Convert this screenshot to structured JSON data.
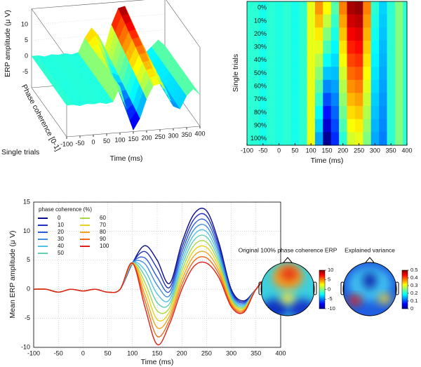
{
  "chart_data": [
    {
      "type": "surface3d",
      "zlabel": "ERP amplitude (μ V)",
      "ylabel": "Phase coherence [0-1]",
      "ylabel2": "Single trials",
      "xlabel": "Time (ms)",
      "x": [
        -100,
        -75,
        -50,
        -25,
        0,
        25,
        50,
        75,
        100,
        125,
        150,
        175,
        200,
        225,
        250,
        275,
        300,
        325,
        350,
        375,
        400
      ],
      "z": [
        [
          0,
          0,
          -0.5,
          0,
          -0.3,
          0,
          -0.5,
          0,
          4.5,
          7.5,
          5,
          1,
          8,
          13,
          13.5,
          8,
          0,
          -2,
          0,
          2,
          0
        ],
        [
          0,
          0,
          -0.5,
          0,
          -0.3,
          0,
          -0.5,
          0,
          4.5,
          6.5,
          3.6,
          0.3,
          7.2,
          12.1,
          12.6,
          7.4,
          -0.3,
          -2.2,
          0,
          2,
          0
        ],
        [
          0,
          0,
          -0.5,
          0,
          -0.3,
          0,
          -0.5,
          0,
          4.5,
          5.4,
          2.1,
          -0.4,
          6.4,
          11.2,
          11.7,
          6.8,
          -0.6,
          -2.4,
          0,
          2,
          0
        ],
        [
          0,
          0,
          -0.5,
          0,
          -0.3,
          0,
          -0.5,
          0,
          4.5,
          4.4,
          0.7,
          -1.1,
          5.6,
          10.3,
          10.8,
          6.2,
          -0.9,
          -2.6,
          0,
          2,
          0
        ],
        [
          0,
          0,
          -0.5,
          0,
          -0.3,
          0,
          -0.5,
          0,
          4.5,
          3.3,
          -0.8,
          -1.8,
          4.8,
          9.4,
          9.9,
          5.6,
          -1.2,
          -2.8,
          0,
          2,
          0
        ],
        [
          0,
          0,
          -0.5,
          0,
          -0.3,
          0,
          -0.5,
          0,
          4.5,
          2.3,
          -2.3,
          -2.5,
          4,
          8.5,
          9,
          5,
          -1.5,
          -3,
          0,
          2,
          0
        ],
        [
          0,
          0,
          -0.5,
          0,
          -0.3,
          0,
          -0.5,
          0,
          4.5,
          1.2,
          -3.7,
          -3.2,
          3.2,
          7.6,
          8.1,
          4.4,
          -1.8,
          -3.2,
          0,
          2,
          0
        ],
        [
          0,
          0,
          -0.5,
          0,
          -0.3,
          0,
          -0.5,
          0,
          4.5,
          0.2,
          -5.2,
          -3.9,
          2.4,
          6.7,
          7.2,
          3.8,
          -2.1,
          -3.4,
          0,
          2,
          0
        ],
        [
          0,
          0,
          -0.5,
          0,
          -0.3,
          0,
          -0.5,
          0,
          4.5,
          -0.9,
          -6.6,
          -4.6,
          1.6,
          5.8,
          6.3,
          3.2,
          -2.4,
          -3.6,
          0,
          2,
          0
        ],
        [
          0,
          0,
          -0.5,
          0,
          -0.3,
          0,
          -0.5,
          0,
          4.5,
          -1.9,
          -8.1,
          -5.3,
          0.8,
          4.9,
          5.4,
          2.6,
          -2.7,
          -3.8,
          0,
          2,
          0
        ],
        [
          0,
          0,
          -0.5,
          0,
          -0.3,
          0,
          -0.5,
          0,
          4.5,
          -3,
          -9.5,
          -6,
          0,
          4,
          4.5,
          2,
          -3,
          -4,
          0,
          2,
          0
        ]
      ],
      "xlim": [
        -100,
        400
      ],
      "xticks": [
        -100,
        -50,
        0,
        50,
        100,
        150,
        200,
        250,
        300,
        350,
        400
      ],
      "zlim": [
        -10,
        15
      ],
      "zticks": [
        -5,
        0,
        5,
        10
      ],
      "clim": [
        -10,
        14
      ]
    },
    {
      "type": "heatmap",
      "xlabel": "Time (ms)",
      "ylabel": "Single trials",
      "categories": [
        "0%",
        "10%",
        "20%",
        "30%",
        "40%",
        "50%",
        "60%",
        "70%",
        "80%",
        "90%",
        "100%"
      ],
      "x": [
        -100,
        -75,
        -50,
        -25,
        0,
        25,
        50,
        75,
        100,
        125,
        150,
        175,
        200,
        225,
        250,
        275,
        300,
        325,
        350,
        375,
        400
      ],
      "values": [
        [
          0,
          0,
          -0.5,
          0,
          -0.3,
          0,
          -0.5,
          0,
          4.5,
          7.5,
          5,
          1,
          8,
          13,
          13.5,
          8,
          0,
          -2,
          0,
          2,
          0
        ],
        [
          0,
          0,
          -0.5,
          0,
          -0.3,
          0,
          -0.5,
          0,
          4.5,
          6.5,
          3.6,
          0.3,
          7.2,
          12.1,
          12.6,
          7.4,
          -0.3,
          -2.2,
          0,
          2,
          0
        ],
        [
          0,
          0,
          -0.5,
          0,
          -0.3,
          0,
          -0.5,
          0,
          4.5,
          5.4,
          2.1,
          -0.4,
          6.4,
          11.2,
          11.7,
          6.8,
          -0.6,
          -2.4,
          0,
          2,
          0
        ],
        [
          0,
          0,
          -0.5,
          0,
          -0.3,
          0,
          -0.5,
          0,
          4.5,
          4.4,
          0.7,
          -1.1,
          5.6,
          10.3,
          10.8,
          6.2,
          -0.9,
          -2.6,
          0,
          2,
          0
        ],
        [
          0,
          0,
          -0.5,
          0,
          -0.3,
          0,
          -0.5,
          0,
          4.5,
          3.3,
          -0.8,
          -1.8,
          4.8,
          9.4,
          9.9,
          5.6,
          -1.2,
          -2.8,
          0,
          2,
          0
        ],
        [
          0,
          0,
          -0.5,
          0,
          -0.3,
          0,
          -0.5,
          0,
          4.5,
          2.3,
          -2.3,
          -2.5,
          4,
          8.5,
          9,
          5,
          -1.5,
          -3,
          0,
          2,
          0
        ],
        [
          0,
          0,
          -0.5,
          0,
          -0.3,
          0,
          -0.5,
          0,
          4.5,
          1.2,
          -3.7,
          -3.2,
          3.2,
          7.6,
          8.1,
          4.4,
          -1.8,
          -3.2,
          0,
          2,
          0
        ],
        [
          0,
          0,
          -0.5,
          0,
          -0.3,
          0,
          -0.5,
          0,
          4.5,
          0.2,
          -5.2,
          -3.9,
          2.4,
          6.7,
          7.2,
          3.8,
          -2.1,
          -3.4,
          0,
          2,
          0
        ],
        [
          0,
          0,
          -0.5,
          0,
          -0.3,
          0,
          -0.5,
          0,
          4.5,
          -0.9,
          -6.6,
          -4.6,
          1.6,
          5.8,
          6.3,
          3.2,
          -2.4,
          -3.6,
          0,
          2,
          0
        ],
        [
          0,
          0,
          -0.5,
          0,
          -0.3,
          0,
          -0.5,
          0,
          4.5,
          -1.9,
          -8.1,
          -5.3,
          0.8,
          4.9,
          5.4,
          2.6,
          -2.7,
          -3.8,
          0,
          2,
          0
        ],
        [
          0,
          0,
          -0.5,
          0,
          -0.3,
          0,
          -0.5,
          0,
          4.5,
          -3,
          -9.5,
          -6,
          0,
          4,
          4.5,
          2,
          -3,
          -4,
          0,
          2,
          0
        ]
      ],
      "xlim": [
        -100,
        400
      ],
      "xticks": [
        -100,
        -50,
        0,
        50,
        100,
        150,
        200,
        250,
        300,
        350,
        400
      ],
      "clim": [
        -10,
        14
      ]
    },
    {
      "type": "line",
      "xlabel": "Time (ms)",
      "ylabel": "Mean ERP amplitude (μ V)",
      "legend_title": "phase coherence (%)",
      "x": [
        -100,
        -75,
        -50,
        -25,
        0,
        25,
        50,
        75,
        100,
        125,
        150,
        175,
        200,
        225,
        250,
        275,
        300,
        325,
        350,
        375,
        400
      ],
      "series": [
        {
          "name": "0",
          "color": "#0a0a8c",
          "values": [
            0,
            0,
            -0.5,
            0,
            -0.3,
            0,
            -0.5,
            0,
            4.5,
            7.5,
            5,
            1,
            8,
            13,
            13.5,
            8,
            0,
            -2,
            0,
            2,
            0
          ]
        },
        {
          "name": "10",
          "color": "#1f2fc4",
          "values": [
            0,
            0,
            -0.5,
            0,
            -0.3,
            0,
            -0.5,
            0,
            4.5,
            6.5,
            3.6,
            0.3,
            7.2,
            12.1,
            12.6,
            7.4,
            -0.3,
            -2.2,
            0,
            2,
            0
          ]
        },
        {
          "name": "20",
          "color": "#2a5fd8",
          "values": [
            0,
            0,
            -0.5,
            0,
            -0.3,
            0,
            -0.5,
            0,
            4.5,
            5.4,
            2.1,
            -0.4,
            6.4,
            11.2,
            11.7,
            6.8,
            -0.6,
            -2.4,
            0,
            2,
            0
          ]
        },
        {
          "name": "30",
          "color": "#3e8fe0",
          "values": [
            0,
            0,
            -0.5,
            0,
            -0.3,
            0,
            -0.5,
            0,
            4.5,
            4.4,
            0.7,
            -1.1,
            5.6,
            10.3,
            10.8,
            6.2,
            -0.9,
            -2.6,
            0,
            2,
            0
          ]
        },
        {
          "name": "40",
          "color": "#4fc1e8",
          "values": [
            0,
            0,
            -0.5,
            0,
            -0.3,
            0,
            -0.5,
            0,
            4.5,
            3.3,
            -0.8,
            -1.8,
            4.8,
            9.4,
            9.9,
            5.6,
            -1.2,
            -2.8,
            0,
            2,
            0
          ]
        },
        {
          "name": "50",
          "color": "#5fcfb0",
          "values": [
            0,
            0,
            -0.5,
            0,
            -0.3,
            0,
            -0.5,
            0,
            4.5,
            2.3,
            -2.3,
            -2.5,
            4,
            8.5,
            9,
            5,
            -1.5,
            -3,
            0,
            2,
            0
          ]
        },
        {
          "name": "60",
          "color": "#a8d84a",
          "values": [
            0,
            0,
            -0.5,
            0,
            -0.3,
            0,
            -0.5,
            0,
            4.5,
            1.2,
            -3.7,
            -3.2,
            3.2,
            7.6,
            8.1,
            4.4,
            -1.8,
            -3.2,
            0,
            2,
            0
          ]
        },
        {
          "name": "70",
          "color": "#e6d21e",
          "values": [
            0,
            0,
            -0.5,
            0,
            -0.3,
            0,
            -0.5,
            0,
            4.5,
            0.2,
            -5.2,
            -3.9,
            2.4,
            6.7,
            7.2,
            3.8,
            -2.1,
            -3.4,
            0,
            2,
            0
          ]
        },
        {
          "name": "80",
          "color": "#f4a020",
          "values": [
            0,
            0,
            -0.5,
            0,
            -0.3,
            0,
            -0.5,
            0,
            4.5,
            -0.9,
            -6.6,
            -4.6,
            1.6,
            5.8,
            6.3,
            3.2,
            -2.4,
            -3.6,
            0,
            2,
            0
          ]
        },
        {
          "name": "90",
          "color": "#f06a18",
          "values": [
            0,
            0,
            -0.5,
            0,
            -0.3,
            0,
            -0.5,
            0,
            4.5,
            -1.9,
            -8.1,
            -5.3,
            0.8,
            4.9,
            5.4,
            2.6,
            -2.7,
            -3.8,
            0,
            2,
            0
          ]
        },
        {
          "name": "100",
          "color": "#e0201a",
          "values": [
            0,
            0,
            -0.5,
            0,
            -0.3,
            0,
            -0.5,
            0,
            4.5,
            -3,
            -9.5,
            -6,
            0,
            4,
            4.5,
            2,
            -3,
            -4,
            0,
            2,
            0
          ]
        }
      ],
      "xlim": [
        -100,
        400
      ],
      "xticks": [
        -100,
        -50,
        0,
        50,
        100,
        150,
        200,
        250,
        300,
        350,
        400
      ],
      "ylim": [
        -10,
        15
      ],
      "yticks": [
        -10,
        -5,
        0,
        5,
        10,
        15
      ],
      "grid": true
    },
    {
      "type": "topomap",
      "maps": [
        {
          "title": "Original 100% phase coherence ERP",
          "clim": [
            -10,
            10
          ],
          "cticks": [
            10,
            5,
            0,
            -5,
            -10
          ]
        },
        {
          "title": "Explained variance",
          "clim": [
            0,
            0.5
          ],
          "cticks": [
            0.5,
            0.4,
            0.3,
            0.2,
            0.1,
            0
          ]
        }
      ]
    }
  ]
}
